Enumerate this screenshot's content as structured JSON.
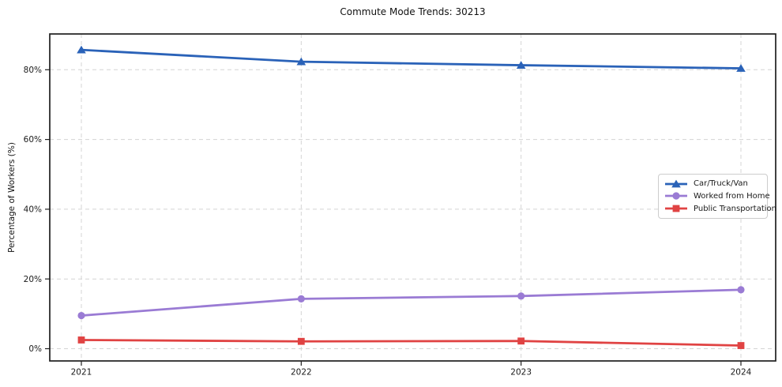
{
  "title": "Commute Mode Trends: 30213",
  "chart_data": {
    "type": "line",
    "x": [
      2021,
      2022,
      2023,
      2024
    ],
    "series": [
      {
        "name": "Car/Truck/Van",
        "values": [
          85.7,
          82.3,
          81.3,
          80.4
        ],
        "color": "#2a62b8",
        "marker": "triangle"
      },
      {
        "name": "Worked from Home",
        "values": [
          9.5,
          14.3,
          15.1,
          16.9
        ],
        "color": "#9a7bd4",
        "marker": "circle"
      },
      {
        "name": "Public Transportation",
        "values": [
          2.5,
          2.1,
          2.2,
          0.9
        ],
        "color": "#e04343",
        "marker": "square"
      }
    ],
    "xlabel": "",
    "ylabel": "Percentage of Workers (%)",
    "y_ticks": [
      0,
      20,
      40,
      60,
      80
    ],
    "y_tick_labels": [
      "0%",
      "20%",
      "40%",
      "60%",
      "80%"
    ],
    "x_tick_labels": [
      "2021",
      "2022",
      "2023",
      "2024"
    ],
    "ylim": [
      -3.5,
      90.3
    ],
    "grid": true,
    "grid_style": "dashed",
    "legend_position": "center-right"
  },
  "colors": {
    "background": "#ffffff",
    "grid": "#d4d4d4",
    "spine": "#1f1f1f",
    "text": "#1a1a1a",
    "legend_border": "#cccccc"
  }
}
